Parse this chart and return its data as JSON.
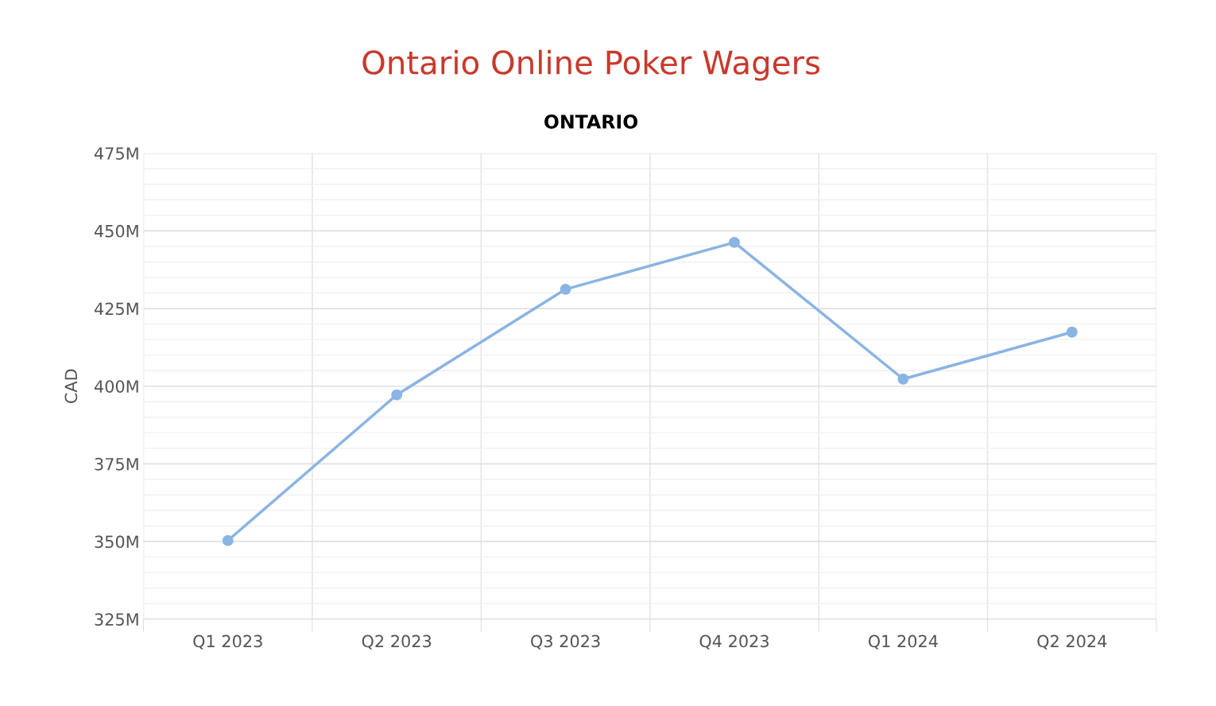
{
  "chart_data": {
    "type": "line",
    "title": "Ontario Online Poker Wagers",
    "subtitle": "ONTARIO",
    "ylabel": "CAD",
    "categories": [
      "Q1 2023",
      "Q2 2023",
      "Q3 2023",
      "Q4 2023",
      "Q1 2024",
      "Q2 2024"
    ],
    "series": [
      {
        "color": "#8ab4e3",
        "values": [
          350.3,
          397.2,
          431.2,
          446.3,
          402.3,
          417.4
        ]
      }
    ],
    "ylim": [
      325,
      475
    ],
    "yticks": [
      {
        "value": 325,
        "label": "325M"
      },
      {
        "value": 350,
        "label": "350M"
      },
      {
        "value": 375,
        "label": "375M"
      },
      {
        "value": 400,
        "label": "400M"
      },
      {
        "value": 425,
        "label": "425M"
      },
      {
        "value": 450,
        "label": "450M"
      },
      {
        "value": 475,
        "label": "475M"
      }
    ],
    "grid": true,
    "marker": "circle",
    "line_style": "solid"
  }
}
